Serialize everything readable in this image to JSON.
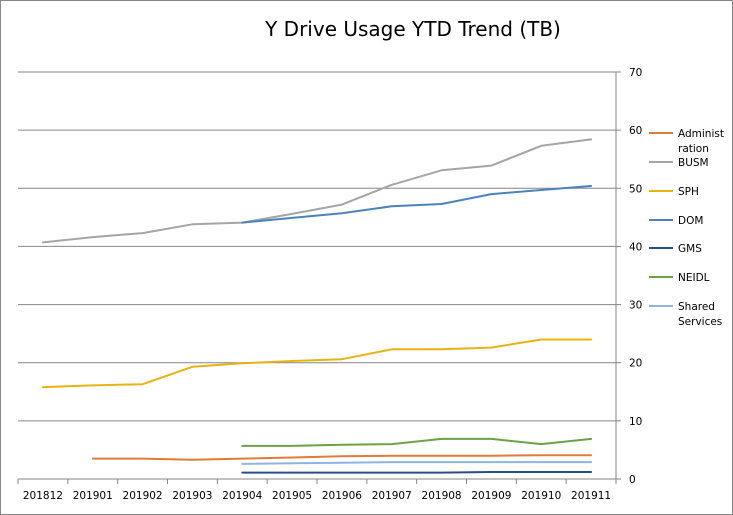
{
  "chart_data": {
    "type": "line",
    "title": "Y Drive Usage YTD Trend (TB)",
    "xlabel": "",
    "ylabel": "",
    "categories": [
      "201812",
      "201901",
      "201902",
      "201903",
      "201904",
      "201905",
      "201906",
      "201907",
      "201908",
      "201909",
      "201910",
      "201911"
    ],
    "ylim": [
      0,
      70
    ],
    "yticks": [
      0,
      10,
      20,
      30,
      40,
      50,
      60,
      70
    ],
    "y_axis_side": "right",
    "grid": true,
    "legend_position": "right",
    "series": [
      {
        "name": "Administration",
        "legend_lines": [
          "Administ",
          "ration"
        ],
        "color": "#E07B39",
        "values": [
          null,
          3.5,
          3.5,
          3.3,
          3.5,
          3.7,
          3.9,
          4.0,
          4.0,
          4.0,
          4.1,
          4.1
        ]
      },
      {
        "name": "BUSM",
        "legend_lines": [
          "BUSM"
        ],
        "color": "#A5A5A5",
        "values": [
          40.7,
          41.6,
          42.3,
          43.8,
          44.1,
          45.6,
          47.2,
          50.6,
          53.1,
          53.9,
          57.3,
          58.4
        ]
      },
      {
        "name": "SPH",
        "legend_lines": [
          "SPH"
        ],
        "color": "#E6B411",
        "values": [
          15.8,
          16.1,
          16.3,
          19.3,
          19.9,
          20.3,
          20.6,
          22.3,
          22.3,
          22.6,
          24.0,
          24.0
        ]
      },
      {
        "name": "DOM",
        "legend_lines": [
          "DOM"
        ],
        "color": "#4A84BE",
        "values": [
          null,
          null,
          null,
          null,
          44.1,
          44.9,
          45.7,
          46.9,
          47.3,
          49.0,
          49.7,
          50.4
        ]
      },
      {
        "name": "GMS",
        "legend_lines": [
          "GMS"
        ],
        "color": "#284C8C",
        "values": [
          null,
          null,
          null,
          null,
          1.1,
          1.1,
          1.1,
          1.1,
          1.1,
          1.2,
          1.2,
          1.2
        ]
      },
      {
        "name": "NEIDL",
        "legend_lines": [
          "NEIDL"
        ],
        "color": "#6AA344",
        "values": [
          null,
          null,
          null,
          null,
          5.7,
          5.7,
          5.9,
          6.0,
          6.9,
          6.9,
          6.0,
          6.9
        ]
      },
      {
        "name": "Shared Services",
        "legend_lines": [
          "Shared",
          "Services"
        ],
        "color": "#8DB6DE",
        "values": [
          null,
          null,
          null,
          null,
          2.6,
          2.7,
          2.8,
          2.9,
          2.9,
          2.9,
          2.9,
          2.9
        ]
      }
    ]
  }
}
